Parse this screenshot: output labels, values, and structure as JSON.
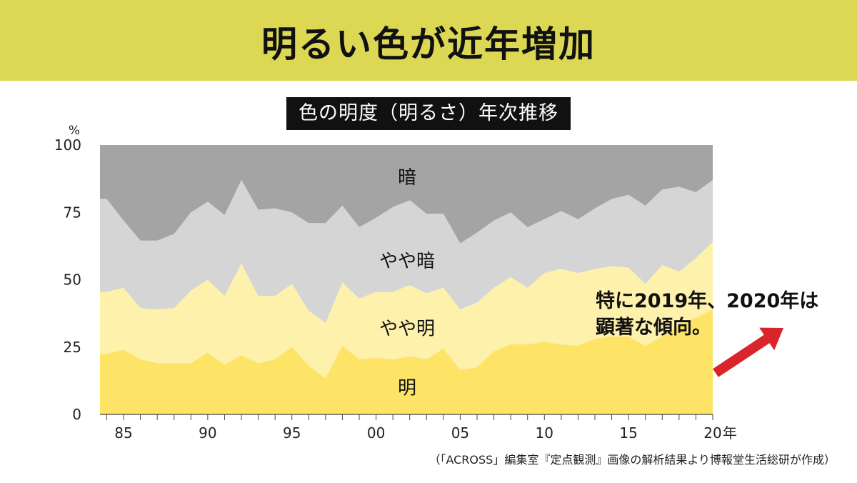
{
  "header": {
    "title": "明るい色が近年増加",
    "subtitle": "色の明度（明るさ）年次推移"
  },
  "annotation": {
    "line1": "特に2019年、2020年は",
    "line2": "顕著な傾向。"
  },
  "source": "（「ACROSS」編集室『定点観測』画像の解析結果より博報堂生活総研が作成）",
  "colors": {
    "banner": "#dcd854",
    "明": "#fde467",
    "やや明": "#fdf1ab",
    "やや暗": "#d5d5d5",
    "暗": "#a4a4a4",
    "arrow": "#d9242c"
  },
  "chart_data": {
    "type": "area",
    "stacked": true,
    "unit": "%",
    "ylim": [
      0,
      100
    ],
    "yticks": [
      0,
      25,
      50,
      75,
      100
    ],
    "x": [
      1984,
      1985,
      1986,
      1987,
      1988,
      1989,
      1990,
      1991,
      1992,
      1993,
      1994,
      1995,
      1996,
      1997,
      1998,
      1999,
      2000,
      2001,
      2002,
      2003,
      2004,
      2005,
      2006,
      2007,
      2008,
      2009,
      2010,
      2011,
      2012,
      2013,
      2014,
      2015,
      2016,
      2017,
      2018,
      2019,
      2020
    ],
    "xlim": [
      1983.6,
      2020
    ],
    "xticks": [
      {
        "value": 1985,
        "label": "85"
      },
      {
        "value": 1990,
        "label": "90"
      },
      {
        "value": 1995,
        "label": "95"
      },
      {
        "value": 2000,
        "label": "00"
      },
      {
        "value": 2005,
        "label": "05"
      },
      {
        "value": 2010,
        "label": "10"
      },
      {
        "value": 2015,
        "label": "15"
      },
      {
        "value": 2020,
        "label": "20"
      }
    ],
    "xunit": "年",
    "series": [
      {
        "name": "明",
        "values": [
          22.5,
          24,
          20.5,
          19,
          19,
          19,
          23,
          18.5,
          22,
          19,
          20.5,
          25,
          18,
          13.5,
          25.5,
          20.5,
          21,
          20.5,
          21.5,
          20.5,
          24.5,
          16.5,
          17.5,
          23.5,
          26,
          26,
          27,
          26,
          25.5,
          28,
          29,
          29,
          25.5,
          29,
          33,
          36,
          39
        ]
      },
      {
        "name": "やや明",
        "values": [
          23,
          23,
          19,
          20,
          20.5,
          27,
          27,
          25.5,
          34,
          25,
          23.5,
          23.5,
          20.5,
          20.5,
          23.5,
          22.5,
          24.5,
          25,
          26.5,
          24.5,
          22.5,
          22.5,
          24,
          23.5,
          25,
          21,
          25.5,
          28,
          27,
          26,
          26,
          25.5,
          23,
          26.5,
          20,
          22,
          25
        ]
      },
      {
        "name": "やや暗",
        "values": [
          34.5,
          25,
          25,
          25.5,
          27.5,
          29,
          29,
          30,
          31,
          32,
          32.5,
          26.5,
          32.5,
          37,
          28.5,
          26.5,
          27.5,
          31.5,
          31.5,
          29.5,
          27.5,
          24.5,
          26,
          25,
          24,
          22.5,
          20,
          21.5,
          20,
          22.5,
          25,
          27,
          29,
          28,
          31.5,
          24.5,
          23
        ]
      },
      {
        "name": "暗",
        "values": [
          20,
          28,
          35.5,
          35.5,
          33,
          25,
          21,
          26,
          13,
          24,
          23.5,
          25,
          29,
          29,
          22.5,
          30.5,
          27,
          23,
          20.5,
          25.5,
          25.5,
          36.5,
          32.5,
          28,
          25,
          30.5,
          27.5,
          24.5,
          27.5,
          23.5,
          20,
          18.5,
          22.5,
          16.5,
          15.5,
          17.5,
          13
        ]
      }
    ]
  }
}
